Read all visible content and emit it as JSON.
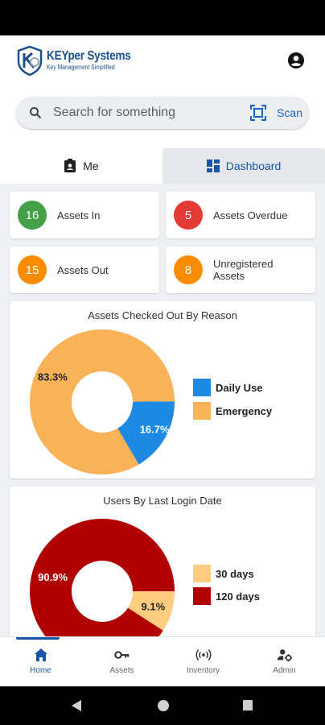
{
  "app": {
    "brand_name": "KEYper Systems",
    "brand_tagline": "Key Management Simplified"
  },
  "search": {
    "placeholder": "Search for something",
    "scan_label": "Scan"
  },
  "tabs": [
    {
      "label": "Me",
      "icon": "badge-icon"
    },
    {
      "label": "Dashboard",
      "icon": "dashboard-icon",
      "active": true
    }
  ],
  "stats": [
    {
      "value": "16",
      "label": "Assets In",
      "color": "#43a047"
    },
    {
      "value": "5",
      "label": "Assets Overdue",
      "color": "#e53935"
    },
    {
      "value": "15",
      "label": "Assets Out",
      "color": "#fb8c00"
    },
    {
      "value": "8",
      "label": "Unregistered Assets",
      "color": "#fb8c00"
    }
  ],
  "chart_data": [
    {
      "type": "pie",
      "title": "Assets Checked Out By Reason",
      "donut": true,
      "categories": [
        "Daily Use",
        "Emergency"
      ],
      "values": [
        16.7,
        83.3
      ],
      "labels": [
        "16.7%",
        "83.3%"
      ],
      "colors": [
        "#1e88e5",
        "#f9b257"
      ],
      "legend": "right"
    },
    {
      "type": "pie",
      "title": "Users By Last Login Date",
      "donut": true,
      "categories": [
        "30 days",
        "120 days"
      ],
      "values": [
        9.1,
        90.9
      ],
      "labels": [
        "9.1%",
        "90.9%"
      ],
      "colors": [
        "#ffcc80",
        "#b00000"
      ],
      "legend": "right"
    }
  ],
  "bottom_nav": [
    {
      "label": "Home",
      "icon": "home-icon",
      "active": true
    },
    {
      "label": "Assets",
      "icon": "key-icon"
    },
    {
      "label": "Inventory",
      "icon": "rfid-icon"
    },
    {
      "label": "Admin",
      "icon": "admin-gear-icon"
    }
  ]
}
